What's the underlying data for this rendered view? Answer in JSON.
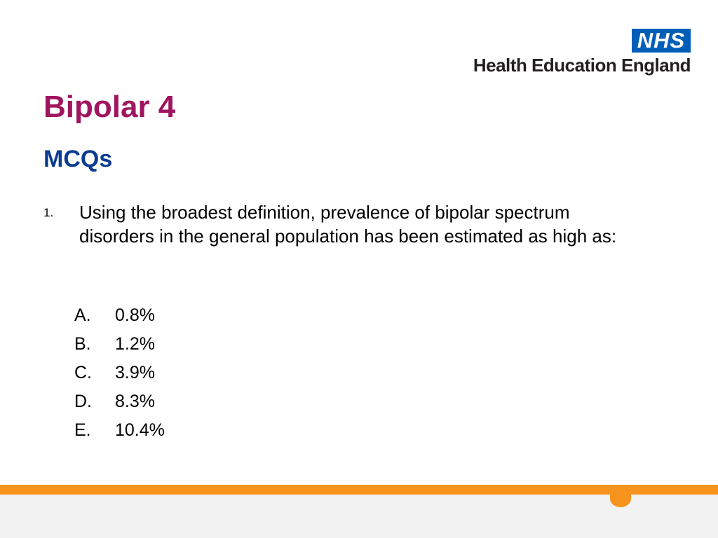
{
  "logo": {
    "badge": "NHS",
    "org": "Health Education England"
  },
  "title": "Bipolar 4",
  "subtitle": "MCQs",
  "question": {
    "number": "1.",
    "text": "Using the broadest definition, prevalence of  bipolar spectrum disorders in the general population has been estimated as high as:"
  },
  "options": [
    {
      "letter": "A.",
      "text": "0.8%"
    },
    {
      "letter": "B.",
      "text": "1.2%"
    },
    {
      "letter": "C.",
      "text": "3.9%"
    },
    {
      "letter": "D.",
      "text": "8.3%"
    },
    {
      "letter": "E.",
      "text": "10.4%"
    }
  ]
}
